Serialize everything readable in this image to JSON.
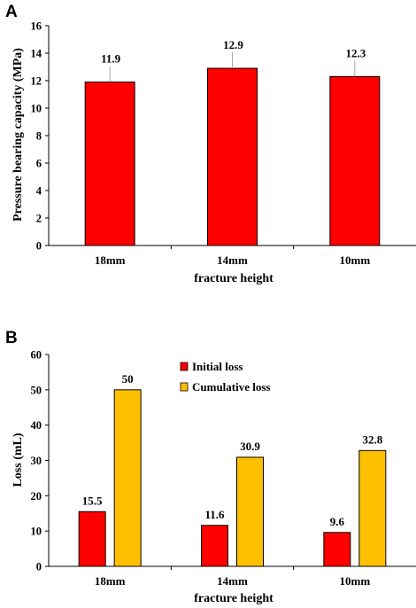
{
  "colors": {
    "initial": "#ff0000",
    "cumulative": "#ffc000",
    "axis": "#000000",
    "leader": "#a6a6a6"
  },
  "chart_data": [
    {
      "panel": "A",
      "type": "bar",
      "categories": [
        "18mm",
        "14mm",
        "10mm"
      ],
      "series": [
        {
          "values": [
            11.9,
            12.9,
            12.3
          ]
        }
      ],
      "data_labels": [
        "11.9",
        "12.9",
        "12.3"
      ],
      "xlabel": "fracture height",
      "ylabel": "Pressure bearing capacity (MPa)",
      "ylim": [
        0,
        16
      ],
      "yticks": [
        0,
        2,
        4,
        6,
        8,
        10,
        12,
        14,
        16
      ],
      "grid": false,
      "legend": "none"
    },
    {
      "panel": "B",
      "type": "bar",
      "categories": [
        "18mm",
        "14mm",
        "10mm"
      ],
      "series": [
        {
          "name": "Initial loss",
          "values": [
            15.5,
            11.6,
            9.6
          ]
        },
        {
          "name": "Cumulative loss",
          "values": [
            50,
            30.9,
            32.8
          ]
        }
      ],
      "data_labels": [
        [
          "15.5",
          "11.6",
          "9.6"
        ],
        [
          "50",
          "30.9",
          "32.8"
        ]
      ],
      "xlabel": "fracture height",
      "ylabel": "Loss (mL)",
      "ylim": [
        0,
        60
      ],
      "yticks": [
        0,
        10,
        20,
        30,
        40,
        50,
        60
      ],
      "grid": false,
      "legend": "top-center"
    }
  ]
}
